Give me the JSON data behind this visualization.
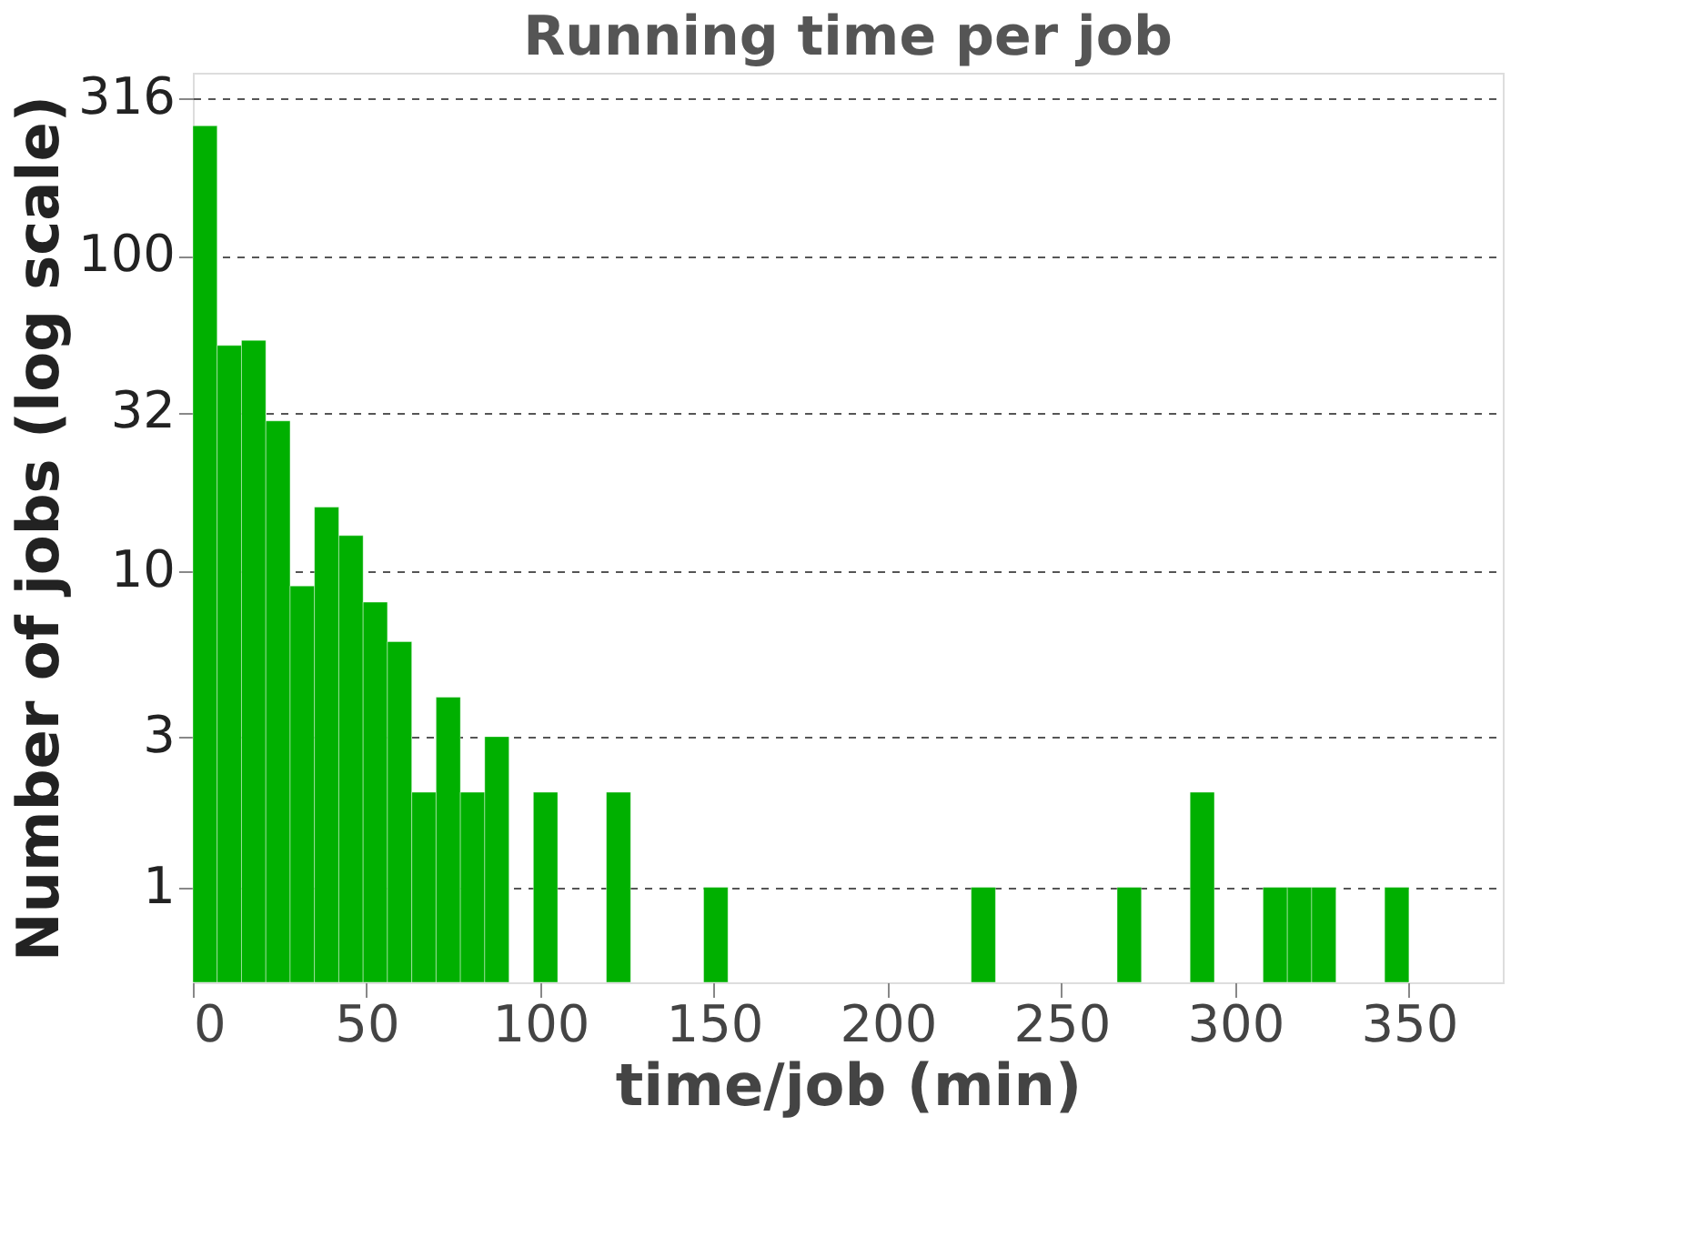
{
  "chart_data": {
    "type": "histogram",
    "title": "Running time per job",
    "xlabel": "time/job (min)",
    "ylabel": "Number of jobs (log scale)",
    "bins": [
      0,
      7,
      14,
      21,
      28,
      35,
      42,
      49,
      56,
      63,
      70,
      77,
      84,
      91,
      98,
      105,
      112,
      119,
      126,
      133,
      140,
      147,
      154,
      161,
      168,
      175,
      182,
      189,
      196,
      203,
      210,
      217,
      224,
      231,
      238,
      245,
      252,
      259,
      266,
      273,
      280,
      287,
      294,
      301,
      308,
      315,
      322,
      329,
      336,
      343,
      350
    ],
    "values": [
      258,
      52,
      54,
      30,
      9,
      16,
      13,
      8,
      6,
      2,
      4,
      2,
      3,
      null,
      2,
      null,
      null,
      2,
      null,
      null,
      null,
      1,
      null,
      null,
      null,
      null,
      null,
      null,
      null,
      null,
      null,
      null,
      1,
      null,
      null,
      null,
      null,
      null,
      1,
      null,
      null,
      2,
      null,
      null,
      1,
      1,
      1,
      null,
      null,
      1
    ],
    "color": "#00b000",
    "log": "y",
    "grid": "y",
    "line_style": "dashed",
    "xlim": [
      0,
      377
    ],
    "xticks": [
      0,
      50,
      100,
      150,
      200,
      250,
      300,
      350
    ],
    "ylim": [
      0.5,
      380
    ],
    "yticks": [
      1,
      3,
      10,
      32,
      100,
      316
    ]
  }
}
